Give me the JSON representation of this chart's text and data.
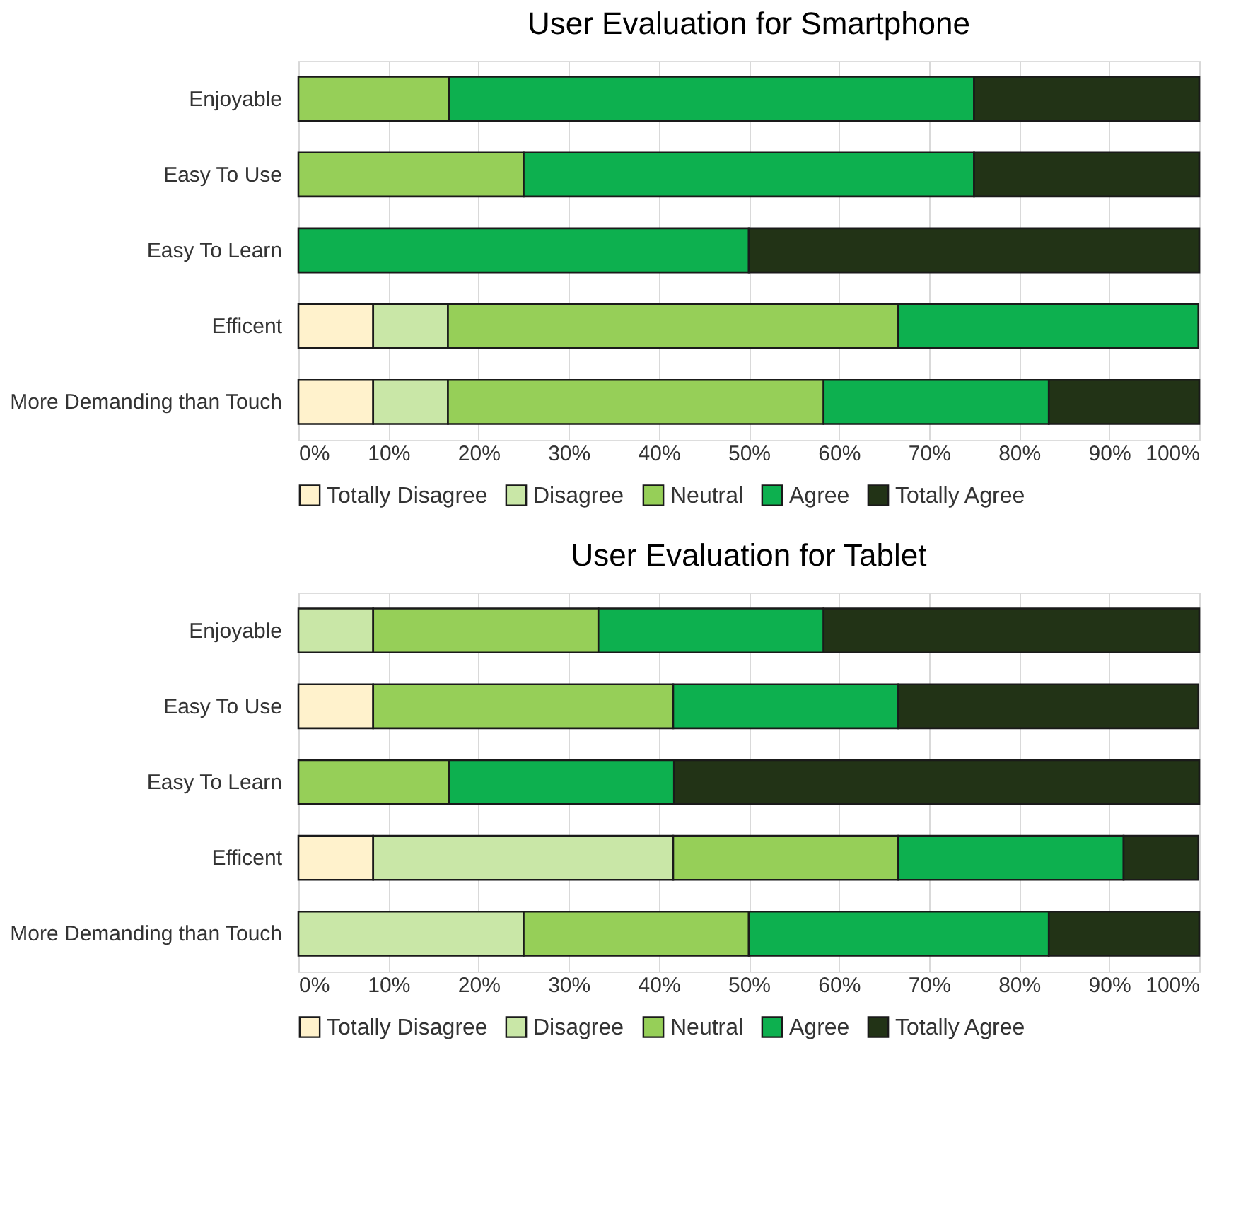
{
  "chart_data": [
    {
      "type": "bar",
      "orientation": "horizontal",
      "stacked": true,
      "title": "User Evaluation for Smartphone",
      "categories": [
        "Enjoyable",
        "Easy To Use",
        "Easy To Learn",
        "Efficent",
        "More Demanding than Touch"
      ],
      "series": [
        {
          "name": "Totally Disagree",
          "color": "#fff2cc",
          "values": [
            null,
            null,
            null,
            8.3,
            8.3
          ]
        },
        {
          "name": "Disagree",
          "color": "#c9e7a7",
          "values": [
            null,
            null,
            null,
            8.3,
            8.3
          ]
        },
        {
          "name": "Neutral",
          "color": "#96cf58",
          "values": [
            16.7,
            25,
            null,
            50,
            41.7
          ]
        },
        {
          "name": "Agree",
          "color": "#0db04f",
          "values": [
            58.3,
            50,
            50,
            33.3,
            25
          ]
        },
        {
          "name": "Totally Agree",
          "color": "#223316",
          "values": [
            25,
            25,
            50,
            null,
            16.7
          ]
        }
      ],
      "xlim": [
        0,
        100
      ],
      "xticks": [
        {
          "value": 0,
          "label": "0%"
        },
        {
          "value": 10,
          "label": "10%"
        },
        {
          "value": 20,
          "label": "20%"
        },
        {
          "value": 30,
          "label": "30%"
        },
        {
          "value": 40,
          "label": "40%"
        },
        {
          "value": 50,
          "label": "50%"
        },
        {
          "value": 60,
          "label": "60%"
        },
        {
          "value": 70,
          "label": "70%"
        },
        {
          "value": 80,
          "label": "80%"
        },
        {
          "value": 90,
          "label": "90%"
        },
        {
          "value": 100,
          "label": "100%"
        }
      ],
      "grid": "x",
      "legend": "bottom"
    },
    {
      "type": "bar",
      "orientation": "horizontal",
      "stacked": true,
      "title": "User Evaluation for Tablet",
      "categories": [
        "Enjoyable",
        "Easy To Use",
        "Easy To Learn",
        "Efficent",
        "More Demanding than Touch"
      ],
      "series": [
        {
          "name": "Totally Disagree",
          "color": "#fff2cc",
          "values": [
            null,
            8.3,
            null,
            8.3,
            null
          ]
        },
        {
          "name": "Disagree",
          "color": "#c9e7a7",
          "values": [
            8.3,
            null,
            null,
            33.3,
            25
          ]
        },
        {
          "name": "Neutral",
          "color": "#96cf58",
          "values": [
            25,
            33.3,
            16.7,
            25,
            25
          ]
        },
        {
          "name": "Agree",
          "color": "#0db04f",
          "values": [
            25,
            25,
            25,
            25,
            33.3
          ]
        },
        {
          "name": "Totally Agree",
          "color": "#223316",
          "values": [
            41.7,
            33.3,
            58.3,
            8.3,
            16.7
          ]
        }
      ],
      "xlim": [
        0,
        100
      ],
      "xticks": [
        {
          "value": 0,
          "label": "0%"
        },
        {
          "value": 10,
          "label": "10%"
        },
        {
          "value": 20,
          "label": "20%"
        },
        {
          "value": 30,
          "label": "30%"
        },
        {
          "value": 40,
          "label": "40%"
        },
        {
          "value": 50,
          "label": "50%"
        },
        {
          "value": 60,
          "label": "60%"
        },
        {
          "value": 70,
          "label": "70%"
        },
        {
          "value": 80,
          "label": "80%"
        },
        {
          "value": 90,
          "label": "90%"
        },
        {
          "value": 100,
          "label": "100%"
        }
      ],
      "grid": "x",
      "legend": "bottom"
    }
  ]
}
